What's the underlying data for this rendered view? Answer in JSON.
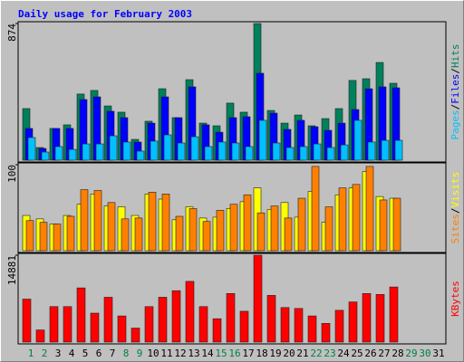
{
  "chart_data": [
    {
      "type": "bar",
      "title": "Daily usage for February 2003",
      "categories": [
        "1",
        "2",
        "3",
        "4",
        "5",
        "6",
        "7",
        "8",
        "9",
        "10",
        "11",
        "12",
        "13",
        "14",
        "15",
        "16",
        "17",
        "18",
        "19",
        "20",
        "21",
        "22",
        "23",
        "24",
        "25",
        "26",
        "27",
        "28",
        "29",
        "30",
        "31"
      ],
      "category_colors": [
        "#008040",
        "#008040",
        "#000000",
        "#000000",
        "#000000",
        "#000000",
        "#000000",
        "#008040",
        "#008040",
        "#000000",
        "#000000",
        "#000000",
        "#000000",
        "#000000",
        "#008040",
        "#008040",
        "#000000",
        "#000000",
        "#000000",
        "#000000",
        "#000000",
        "#008040",
        "#008040",
        "#000000",
        "#000000",
        "#000000",
        "#000000",
        "#000000",
        "#008040",
        "#008040",
        "#000000"
      ],
      "legend_separator": "/",
      "ylim": [
        0,
        874
      ],
      "yticks": [
        874
      ],
      "series": [
        {
          "name": "Hits",
          "color": "#00805c",
          "values": [
            330,
            81,
            203,
            226,
            423,
            446,
            347,
            307,
            133,
            249,
            457,
            272,
            515,
            237,
            220,
            365,
            307,
            874,
            318,
            237,
            289,
            220,
            266,
            330,
            510,
            521,
            625,
            492,
            null,
            null,
            null
          ]
        },
        {
          "name": "Files",
          "color": "#0000ff",
          "values": [
            203,
            75,
            203,
            203,
            388,
            405,
            313,
            272,
            116,
            237,
            405,
            272,
            469,
            226,
            179,
            272,
            278,
            556,
            301,
            197,
            255,
            214,
            191,
            237,
            324,
            457,
            469,
            463,
            null,
            null,
            null
          ]
        },
        {
          "name": "Pages",
          "color": "#00c0ff",
          "values": [
            145,
            52,
            87,
            69,
            104,
            104,
            156,
            116,
            58,
            122,
            162,
            110,
            150,
            87,
            116,
            110,
            87,
            255,
            110,
            81,
            87,
            104,
            81,
            98,
            255,
            116,
            127,
            127,
            null,
            null,
            null
          ]
        }
      ]
    },
    {
      "type": "bar",
      "legend_separator": "/",
      "ylim": [
        0,
        100
      ],
      "yticks": [
        100
      ],
      "series": [
        {
          "name": "Visits",
          "color": "#ffff00",
          "values": [
            41,
            37,
            31,
            41,
            54,
            66,
            52,
            51,
            41,
            66,
            60,
            36,
            51,
            38,
            39,
            49,
            57,
            73,
            48,
            56,
            39,
            69,
            33,
            65,
            73,
            92,
            63,
            61,
            null,
            null,
            null
          ]
        },
        {
          "name": "Sites",
          "color": "#ff8000",
          "values": [
            35,
            33,
            31,
            40,
            71,
            70,
            56,
            37,
            38,
            68,
            66,
            40,
            49,
            34,
            47,
            54,
            65,
            44,
            52,
            38,
            61,
            98,
            51,
            73,
            77,
            98,
            59,
            61,
            null,
            null,
            null
          ]
        }
      ]
    },
    {
      "type": "bar",
      "ylim": [
        0,
        14881
      ],
      "yticks": [
        14881
      ],
      "series": [
        {
          "name": "KBytes",
          "color": "#ff0000",
          "values": [
            7360,
            2080,
            6080,
            6080,
            9280,
            4960,
            7680,
            4480,
            2400,
            6080,
            7680,
            8800,
            10400,
            6080,
            4000,
            8320,
            5280,
            14881,
            8000,
            5920,
            5760,
            4480,
            3200,
            5440,
            6880,
            8320,
            8160,
            9440,
            null,
            null,
            null
          ]
        }
      ]
    }
  ]
}
